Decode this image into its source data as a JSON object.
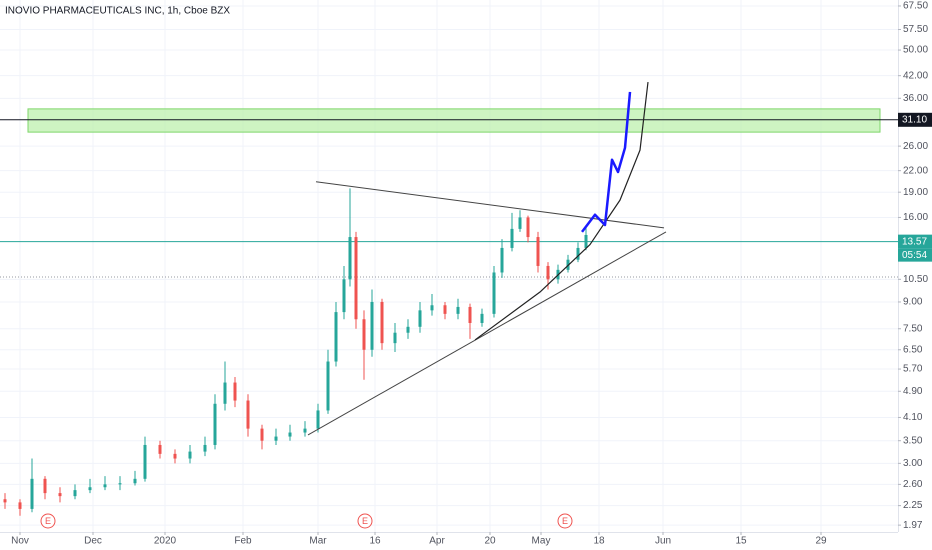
{
  "chart_data": {
    "type": "candlestick",
    "title": "INOVIO PHARMACEUTICALS INC, 1h, Cboe BZX",
    "x": [
      1.25,
      5,
      8,
      11.25,
      15,
      18.75,
      22.5,
      26.25,
      30,
      33.75,
      36.25,
      40,
      43.75,
      47.5,
      51.25,
      53.75,
      56.25,
      58.75,
      62,
      65.5,
      69,
      72.5,
      76.25,
      79.5,
      82,
      84,
      86,
      87.5,
      89,
      91,
      93,
      95.5,
      98.75,
      102,
      105,
      108,
      111.25,
      114.5,
      117.5,
      120.5,
      123.5,
      125.5,
      128,
      130,
      132,
      134.5,
      137,
      139.5,
      142,
      144.5,
      146.5
    ],
    "open": [
      2.35,
      2.3,
      2.2,
      2.7,
      2.45,
      2.4,
      2.5,
      2.55,
      2.6,
      2.62,
      2.7,
      3.4,
      3.2,
      3.1,
      3.25,
      3.4,
      4.5,
      5.2,
      4.6,
      3.8,
      3.5,
      3.6,
      3.7,
      3.8,
      4.3,
      6.0,
      8.4,
      10.5,
      14.0,
      8.0,
      6.5,
      9.0,
      6.8,
      7.3,
      7.6,
      8.5,
      8.8,
      8.3,
      8.7,
      7.8,
      8.3,
      11.0,
      13.0,
      14.8,
      16.0,
      14.0,
      11.5,
      10.5,
      11.2,
      12.0,
      13.0
    ],
    "high": [
      2.45,
      2.35,
      3.1,
      2.75,
      2.55,
      2.6,
      2.7,
      2.75,
      2.75,
      2.85,
      3.6,
      3.5,
      3.3,
      3.4,
      3.6,
      4.8,
      6.0,
      5.4,
      4.8,
      3.9,
      3.8,
      3.9,
      4.0,
      4.5,
      6.5,
      9.0,
      11.5,
      19.5,
      14.5,
      8.5,
      9.8,
      9.2,
      7.8,
      8.0,
      9.0,
      9.5,
      9.0,
      9.2,
      8.9,
      8.6,
      11.5,
      13.8,
      16.5,
      16.8,
      16.2,
      14.5,
      11.8,
      11.6,
      12.4,
      13.5,
      15.0
    ],
    "low": [
      2.2,
      2.1,
      2.15,
      2.35,
      2.3,
      2.35,
      2.45,
      2.5,
      2.5,
      2.58,
      2.65,
      3.1,
      3.0,
      3.0,
      3.15,
      3.3,
      4.3,
      4.4,
      3.6,
      3.3,
      3.4,
      3.5,
      3.6,
      3.7,
      4.2,
      5.8,
      8.0,
      10.0,
      7.5,
      5.3,
      6.2,
      6.5,
      6.4,
      7.0,
      7.3,
      8.2,
      8.0,
      8.0,
      7.0,
      7.6,
      8.1,
      10.6,
      12.7,
      14.5,
      13.5,
      11.0,
      9.8,
      10.2,
      11.0,
      11.8,
      12.8
    ],
    "close": [
      2.3,
      2.2,
      2.7,
      2.45,
      2.4,
      2.5,
      2.55,
      2.6,
      2.62,
      2.7,
      3.4,
      3.2,
      3.1,
      3.25,
      3.4,
      4.5,
      5.2,
      4.6,
      3.8,
      3.5,
      3.6,
      3.7,
      3.8,
      4.3,
      6.0,
      8.4,
      10.5,
      14.0,
      8.0,
      6.5,
      9.0,
      6.8,
      7.3,
      7.6,
      8.5,
      8.8,
      8.3,
      8.7,
      7.8,
      8.3,
      11.0,
      13.0,
      14.8,
      16.0,
      14.0,
      11.5,
      10.5,
      11.2,
      12.0,
      13.0,
      14.2
    ],
    "up_color": "#26a69a",
    "down_color": "#ef5350",
    "xlim": [
      0,
      224.5
    ],
    "xticks": [
      {
        "value": 5,
        "label": "Nov"
      },
      {
        "value": 23.25,
        "label": "Dec"
      },
      {
        "value": 41.25,
        "label": "2020"
      },
      {
        "value": 60.75,
        "label": "Feb"
      },
      {
        "value": 79.5,
        "label": "Mar"
      },
      {
        "value": 93.75,
        "label": "16"
      },
      {
        "value": 109.25,
        "label": "Apr"
      },
      {
        "value": 122.5,
        "label": "20"
      },
      {
        "value": 135.25,
        "label": "May"
      },
      {
        "value": 149.75,
        "label": "18"
      },
      {
        "value": 165.75,
        "label": "Jun"
      },
      {
        "value": 185.25,
        "label": "15"
      },
      {
        "value": 205.25,
        "label": "29"
      }
    ],
    "ylim": [
      1.88,
      70.3
    ],
    "log_scale": true,
    "grid": true,
    "yticks": [
      {
        "value": 67.5,
        "label": "67.50"
      },
      {
        "value": 57.5,
        "label": "57.50"
      },
      {
        "value": 50,
        "label": "50.00"
      },
      {
        "value": 42,
        "label": "42.00"
      },
      {
        "value": 36,
        "label": "36.00"
      },
      {
        "value": 26,
        "label": "26.00"
      },
      {
        "value": 22,
        "label": "22.00"
      },
      {
        "value": 19,
        "label": "19.00"
      },
      {
        "value": 16,
        "label": "16.00"
      },
      {
        "value": 10.5,
        "label": "10.50"
      },
      {
        "value": 9,
        "label": "9.00"
      },
      {
        "value": 7.5,
        "label": "7.50"
      },
      {
        "value": 6.5,
        "label": "6.50"
      },
      {
        "value": 5.7,
        "label": "5.70"
      },
      {
        "value": 4.9,
        "label": "4.90"
      },
      {
        "value": 4.1,
        "label": "4.10"
      },
      {
        "value": 3.5,
        "label": "3.50"
      },
      {
        "value": 3,
        "label": "3.00"
      },
      {
        "value": 2.6,
        "label": "2.60"
      },
      {
        "value": 2.25,
        "label": "2.25"
      },
      {
        "value": 1.97,
        "label": "1.97"
      }
    ],
    "zone": {
      "y": [
        28.6,
        33.5
      ],
      "color": "#b9f0a8",
      "edge": "#7ed66a"
    },
    "price_lines": [
      {
        "value": 31.1,
        "label": "31.10",
        "color": "#131722"
      },
      {
        "value": 13.57,
        "label": "13.57",
        "color": "#26a69a",
        "timer": "05:54"
      },
      {
        "value": 10.67,
        "color": "#9598a1",
        "dash": "dotted"
      }
    ],
    "trendlines": [
      {
        "x": [
          79,
          166
        ],
        "y": [
          20.4,
          14.9
        ],
        "color": "#444444",
        "width": 1
      },
      {
        "x": [
          77,
          166.5
        ],
        "y": [
          3.64,
          14.5
        ],
        "color": "#444444",
        "width": 1
      },
      {
        "x": [
          118.75,
          135,
          147.5,
          155,
          160,
          162
        ],
        "y": [
          6.95,
          9.63,
          13.3,
          18.0,
          25.3,
          40.2
        ],
        "color": "#222222",
        "width": 1.2
      },
      {
        "x": [
          145.5,
          148.75,
          151.25,
          153,
          154.5,
          156.25,
          157.5
        ],
        "y": [
          14.5,
          16.3,
          15.2,
          23.7,
          21.8,
          25.7,
          37.6
        ],
        "color": "#1a1aff",
        "width": 2.5
      }
    ],
    "earnings": [
      {
        "x": 12,
        "label": "E"
      },
      {
        "x": 91.25,
        "label": "E"
      },
      {
        "x": 141.25,
        "label": "E"
      }
    ]
  }
}
